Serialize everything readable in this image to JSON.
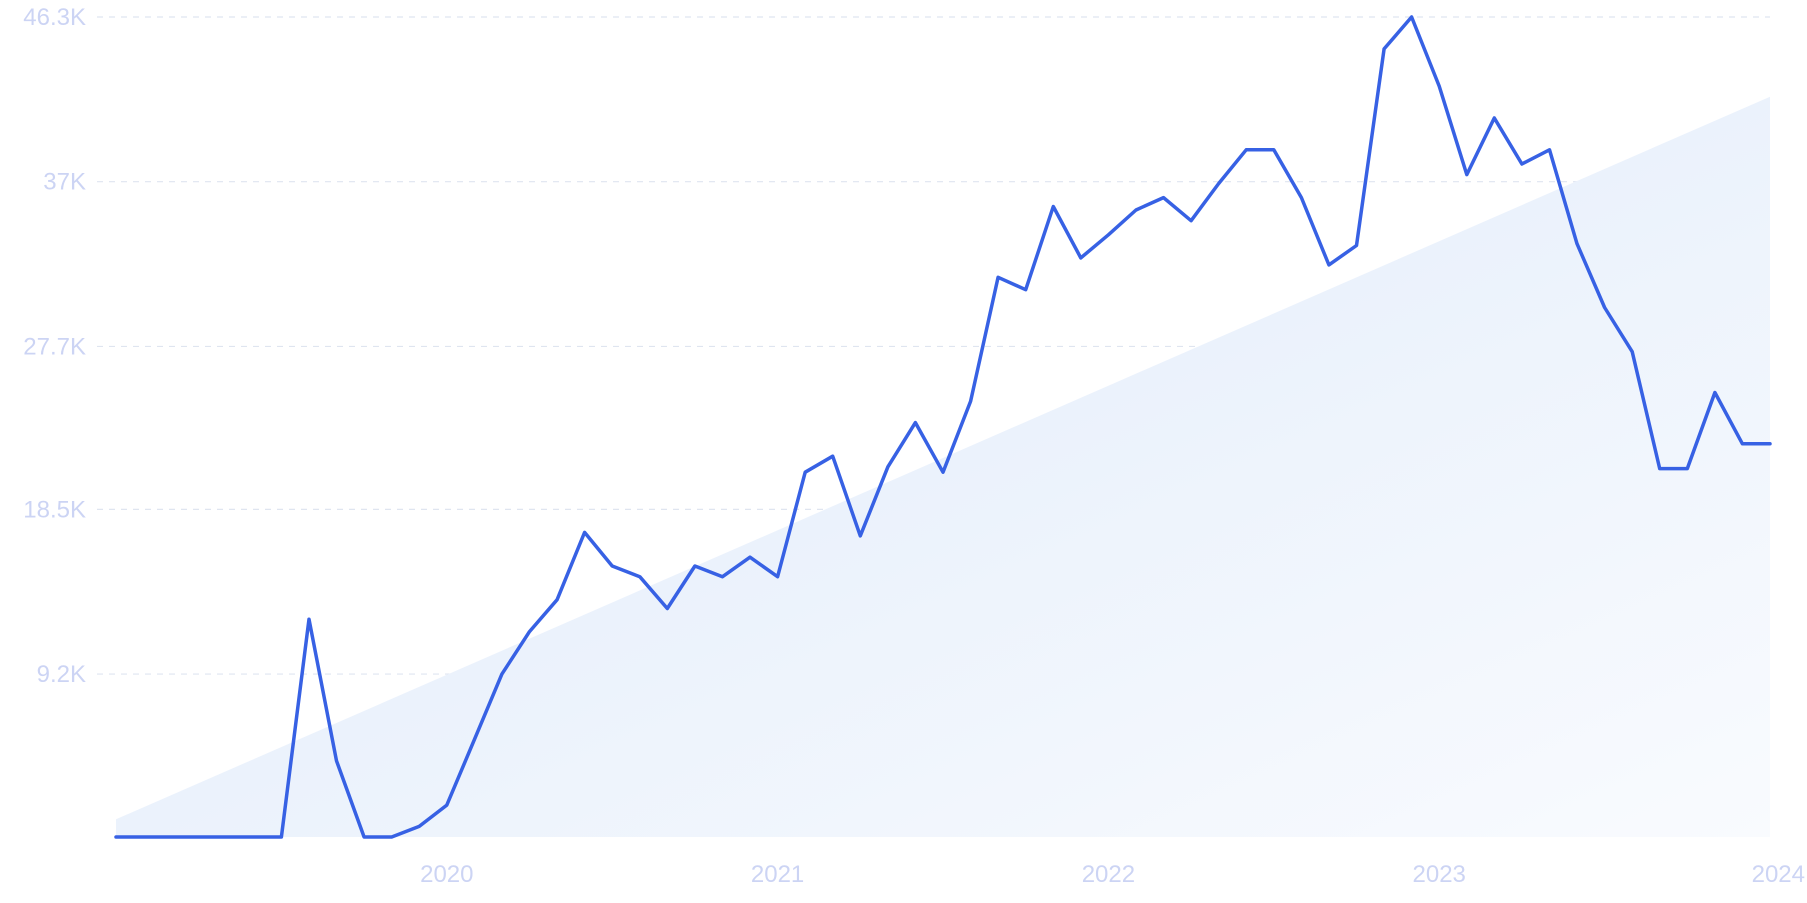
{
  "chart_data": {
    "type": "line",
    "title": "",
    "xlabel": "",
    "ylabel": "",
    "grid": true,
    "ylim": [
      0,
      46300
    ],
    "y_ticks": [
      {
        "value": 9200,
        "label": "9.2K"
      },
      {
        "value": 18500,
        "label": "18.5K"
      },
      {
        "value": 27700,
        "label": "27.7K"
      },
      {
        "value": 37000,
        "label": "37K"
      },
      {
        "value": 46300,
        "label": "46.3K"
      }
    ],
    "x_ticks": [
      {
        "value": "2020-01",
        "label": "2020"
      },
      {
        "value": "2021-01",
        "label": "2021"
      },
      {
        "value": "2022-01",
        "label": "2022"
      },
      {
        "value": "2023-01",
        "label": "2023"
      },
      {
        "value": "2024-01",
        "label": "2024"
      }
    ],
    "colors": {
      "line": "#3761e4",
      "trend_fill_start": "#dde9fa",
      "trend_fill_end": "#f9fbfe",
      "grid": "#dfe5f0",
      "tick_text": "#ccd4f4"
    },
    "trend": {
      "start": {
        "x": "2019-01",
        "y": 1000
      },
      "end": {
        "x": "2024-01",
        "y": 41800
      }
    },
    "series": [
      {
        "x": [
          "2019-01",
          "2019-02",
          "2019-03",
          "2019-04",
          "2019-05",
          "2019-06",
          "2019-07",
          "2019-08",
          "2019-09",
          "2019-10",
          "2019-11",
          "2019-12",
          "2020-01",
          "2020-02",
          "2020-03",
          "2020-04",
          "2020-05",
          "2020-06",
          "2020-07",
          "2020-08",
          "2020-09",
          "2020-10",
          "2020-11",
          "2020-12",
          "2021-01",
          "2021-02",
          "2021-03",
          "2021-04",
          "2021-05",
          "2021-06",
          "2021-07",
          "2021-08",
          "2021-09",
          "2021-10",
          "2021-11",
          "2021-12",
          "2022-01",
          "2022-02",
          "2022-03",
          "2022-04",
          "2022-05",
          "2022-06",
          "2022-07",
          "2022-08",
          "2022-09",
          "2022-10",
          "2022-11",
          "2022-12",
          "2023-01",
          "2023-02",
          "2023-03",
          "2023-04",
          "2023-05",
          "2023-06",
          "2023-07",
          "2023-08",
          "2023-09",
          "2023-10",
          "2023-11",
          "2023-12",
          "2024-01"
        ],
        "y": [
          0,
          0,
          0,
          0,
          0,
          0,
          0,
          12300,
          4300,
          0,
          0,
          600,
          1800,
          5500,
          9200,
          11600,
          13400,
          17200,
          15300,
          14700,
          12900,
          15300,
          14700,
          15800,
          14700,
          20600,
          21500,
          17000,
          20900,
          23400,
          20600,
          24600,
          31600,
          30900,
          35600,
          32700,
          34000,
          35400,
          36100,
          34800,
          36900,
          38800,
          38800,
          36100,
          32300,
          33400,
          44500,
          46300,
          42400,
          37400,
          40600,
          38000,
          38800,
          33500,
          29900,
          27400,
          20800,
          20800,
          25100,
          22200,
          22200
        ]
      }
    ]
  }
}
